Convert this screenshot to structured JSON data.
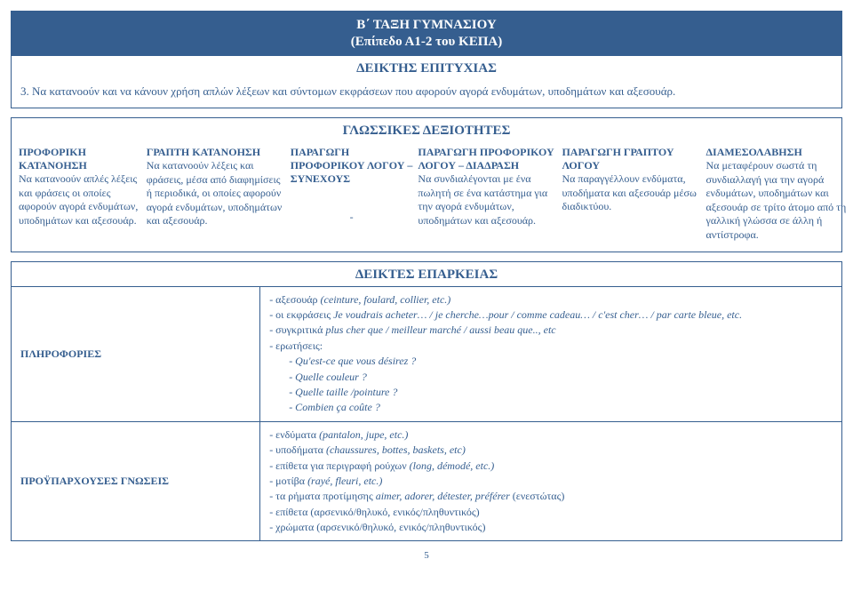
{
  "header": {
    "title_line1": "Β΄ ΤΑΞΗ ΓΥΜΝΑΣΙΟΥ",
    "title_line2": "(Επίπεδο Α1-2 του ΚΕΠΑ)",
    "success_label": "ΔΕΙΚΤΗΣ ΕΠΙΤΥΧΙΑΣ",
    "success_text": "3. Να κατανοούν και να κάνουν χρήση απλών λέξεων και σύντομων εκφράσεων που αφορούν αγορά ενδυμάτων, υποδημάτων και αξεσουάρ."
  },
  "skills": {
    "title": "ΓΛΩΣΣΙΚΕΣ ΔΕΞΙΟΤΗΤΕΣ",
    "cols": {
      "c1": {
        "head": "ΠΡΟΦΟΡΙΚΗ ΚΑΤΑΝΟΗΣΗ",
        "body": "Να κατανοούν απλές λέξεις και φράσεις οι οποίες αφορούν αγορά ενδυμάτων, υποδημάτων και αξεσουάρ."
      },
      "c2": {
        "head": "ΓΡΑΠΤΗ ΚΑΤΑΝΟΗΣΗ",
        "body": "Να κατανοούν λέξεις και φράσεις, μέσα από διαφημίσεις ή περιοδικά, οι οποίες αφορούν αγορά ενδυμάτων, υποδημάτων και αξεσουάρ."
      },
      "c3": {
        "head": "ΠΑΡΑΓΩΓΗ ΠΡΟΦΟΡΙΚΟΥ ΛΟΓΟΥ – ΣΥΝΕΧΟΥΣ",
        "body": "-"
      },
      "c4": {
        "head": "ΠΑΡΑΓΩΓΗ ΠΡΟΦΟΡΙΚΟΥ ΛΟΓΟΥ – ΔΙΑΔΡΑΣΗ",
        "body": "Να συνδιαλέγονται με ένα πωλητή σε ένα κατάστημα για την αγορά ενδυμάτων, υποδημάτων και αξεσουάρ."
      },
      "c5": {
        "head": "ΠΑΡΑΓΩΓΗ ΓΡΑΠΤΟΥ ΛΟΓΟΥ",
        "body": "Να παραγγέλλουν ενδύματα, υποδήματα και αξεσουάρ μέσω διαδικτύου."
      },
      "c6": {
        "head": "ΔΙΑΜΕΣΟΛΑΒΗΣΗ",
        "body": "Να μεταφέρουν σωστά τη συνδιαλλαγή για την αγορά ενδυμάτων, υποδημάτων και αξεσουάρ σε τρίτο άτομο από τη γαλλική γλώσσα σε άλλη ή αντίστροφα."
      }
    }
  },
  "adequacy": {
    "title": "ΔΕΙΚΤΕΣ ΕΠΑΡΚΕΙΑΣ",
    "info": {
      "label": "ΠΛΗΡΟΦΟΡΙΕΣ",
      "l1a": "- αξεσουάρ ",
      "l1b": "(ceinture, foulard, collier, etc.)",
      "l2a": "- οι εκφράσεις ",
      "l2b": "Je voudrais acheter… / je cherche…pour / comme cadeau… / c'est cher… / par carte bleue, etc.",
      "l3a": "- συγκριτικά ",
      "l3b": "plus cher que / meilleur marché / aussi beau que.., etc",
      "l4": "- ερωτήσεις:",
      "q1": "- Qu'est-ce que vous désirez ?",
      "q2": "- Quelle couleur ?",
      "q3": "- Quelle taille /pointure ?",
      "q4": "- Combien ça coûte ?"
    },
    "prior": {
      "label": "ΠΡΟΫΠΑΡΧΟΥΣΕΣ ΓΝΩΣΕΙΣ",
      "l1a": "- ενδύματα ",
      "l1b": "(pantalon, jupe, etc.)",
      "l2a": "- υποδήματα ",
      "l2b": "(chaussures, bottes, baskets, etc)",
      "l3a": "- επίθετα για περιγραφή ρούχων ",
      "l3b": "(long, démodé, etc.)",
      "l4a": "- μοτίβα ",
      "l4b": "(rayé, fleuri, etc.)",
      "l5a": "- τα ρήματα προτίμησης ",
      "l5b": "aimer, adorer, détester, préférer ",
      "l5c": "(ενεστώτας)",
      "l6": "- επίθετα (αρσενικό/θηλυκό, ενικός/πληθυντικός)",
      "l7": "- χρώματα (αρσενικό/θηλυκό, ενικός/πληθυντικός)"
    }
  },
  "page": "5"
}
